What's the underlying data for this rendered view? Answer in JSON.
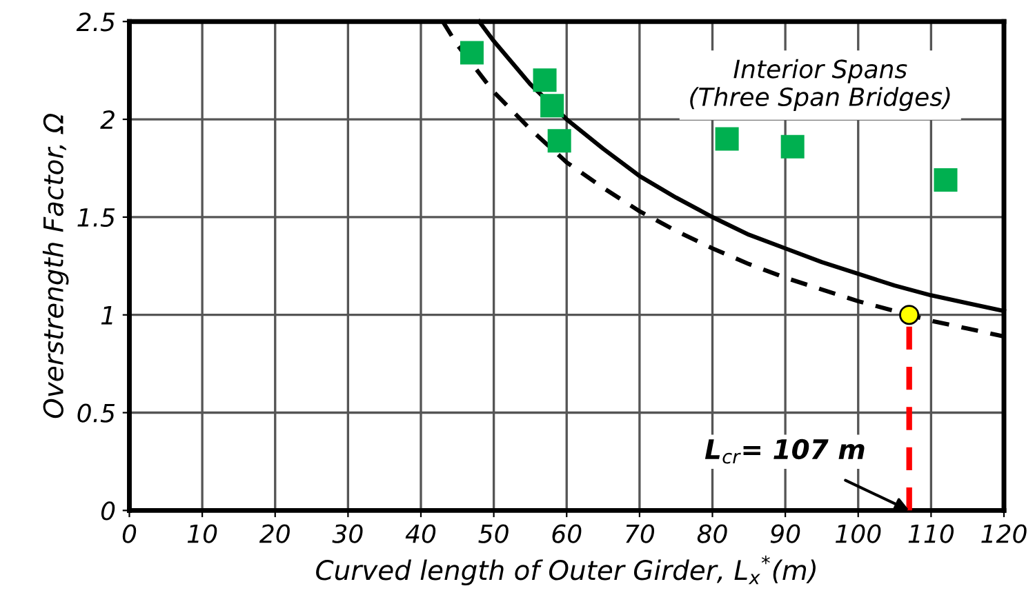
{
  "chart_data": {
    "type": "line",
    "xlabel": "Curved length of Outer Girder, L$_{x}$$^{*}$(m)",
    "ylabel": "Overstrength Factor, Ω",
    "xlim": [
      0,
      120
    ],
    "ylim": [
      0,
      2.5
    ],
    "xticks": [
      0,
      10,
      20,
      30,
      40,
      50,
      60,
      70,
      80,
      90,
      100,
      110,
      120
    ],
    "yticks": [
      0,
      0.5,
      1,
      1.5,
      2,
      2.5
    ],
    "grid": true,
    "legend": false,
    "series": [
      {
        "color": "#000000",
        "line_style": "solid",
        "marker": "none",
        "x": [
          48,
          50,
          55,
          60,
          65,
          70,
          75,
          80,
          85,
          90,
          95,
          100,
          105,
          110,
          115,
          120
        ],
        "values": [
          2.5,
          2.4,
          2.18,
          2.0,
          1.85,
          1.71,
          1.6,
          1.5,
          1.41,
          1.34,
          1.27,
          1.21,
          1.15,
          1.1,
          1.06,
          1.02
        ]
      },
      {
        "color": "#000000",
        "line_style": "dashed",
        "marker": "none",
        "x": [
          43,
          45,
          50,
          55,
          60,
          65,
          70,
          75,
          80,
          85,
          90,
          95,
          100,
          107,
          110,
          115,
          120
        ],
        "values": [
          2.5,
          2.38,
          2.14,
          1.95,
          1.78,
          1.65,
          1.53,
          1.43,
          1.34,
          1.26,
          1.19,
          1.13,
          1.07,
          1.0,
          0.97,
          0.93,
          0.89
        ]
      },
      {
        "type": "scatter",
        "color": "#00b050",
        "marker": "square",
        "x": [
          47,
          57,
          58,
          59,
          82,
          91,
          112
        ],
        "values": [
          2.34,
          2.2,
          2.07,
          1.89,
          1.9,
          1.86,
          1.69
        ]
      },
      {
        "color": "#ff0000",
        "line_style": "dashed",
        "marker": "none",
        "x": [
          107,
          107
        ],
        "values": [
          0,
          1
        ]
      },
      {
        "type": "scatter",
        "color": "#ffff00",
        "marker": "circle",
        "x": [
          107
        ],
        "values": [
          1
        ]
      }
    ],
    "annotations": [
      "Interior Spans\n(Three Span Bridges)",
      {
        "text": "L$_{cr}$= 107 m",
        "x": 107,
        "y": 0
      }
    ]
  }
}
